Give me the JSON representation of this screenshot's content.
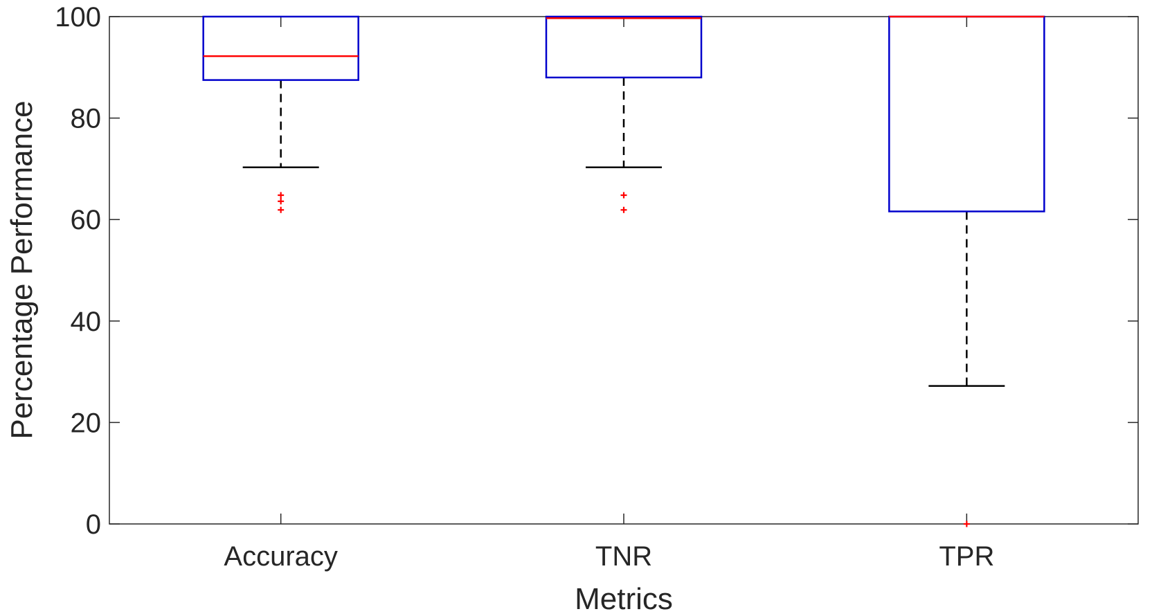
{
  "chart_data": {
    "type": "boxplot",
    "title": "",
    "xlabel": "Metrics",
    "ylabel": "Percentage Performance",
    "ylim": [
      0,
      100
    ],
    "yticks": [
      0,
      20,
      40,
      60,
      80,
      100
    ],
    "ytick_labels": [
      "0",
      "20",
      "40",
      "60",
      "80",
      "100"
    ],
    "categories": [
      "Accuracy",
      "TNR",
      "TPR"
    ],
    "boxes": [
      {
        "category": "Accuracy",
        "whisker_low": 70.3,
        "q1": 87.5,
        "median": 92.2,
        "q3": 100,
        "whisker_high": 100,
        "outliers": [
          61.9,
          63.6,
          64.8
        ]
      },
      {
        "category": "TNR",
        "whisker_low": 70.3,
        "q1": 88.0,
        "median": 99.7,
        "q3": 100,
        "whisker_high": 100,
        "outliers": [
          61.9,
          64.8
        ]
      },
      {
        "category": "TPR",
        "whisker_low": 27.2,
        "q1": 61.6,
        "median": 100,
        "q3": 100,
        "whisker_high": 100,
        "outliers": [
          0
        ]
      }
    ],
    "grid": false,
    "colors": {
      "box": "#0000cc",
      "median": "#ff0000",
      "whisker": "#000000",
      "outlier": "#ff0000",
      "axis": "#262626"
    }
  }
}
